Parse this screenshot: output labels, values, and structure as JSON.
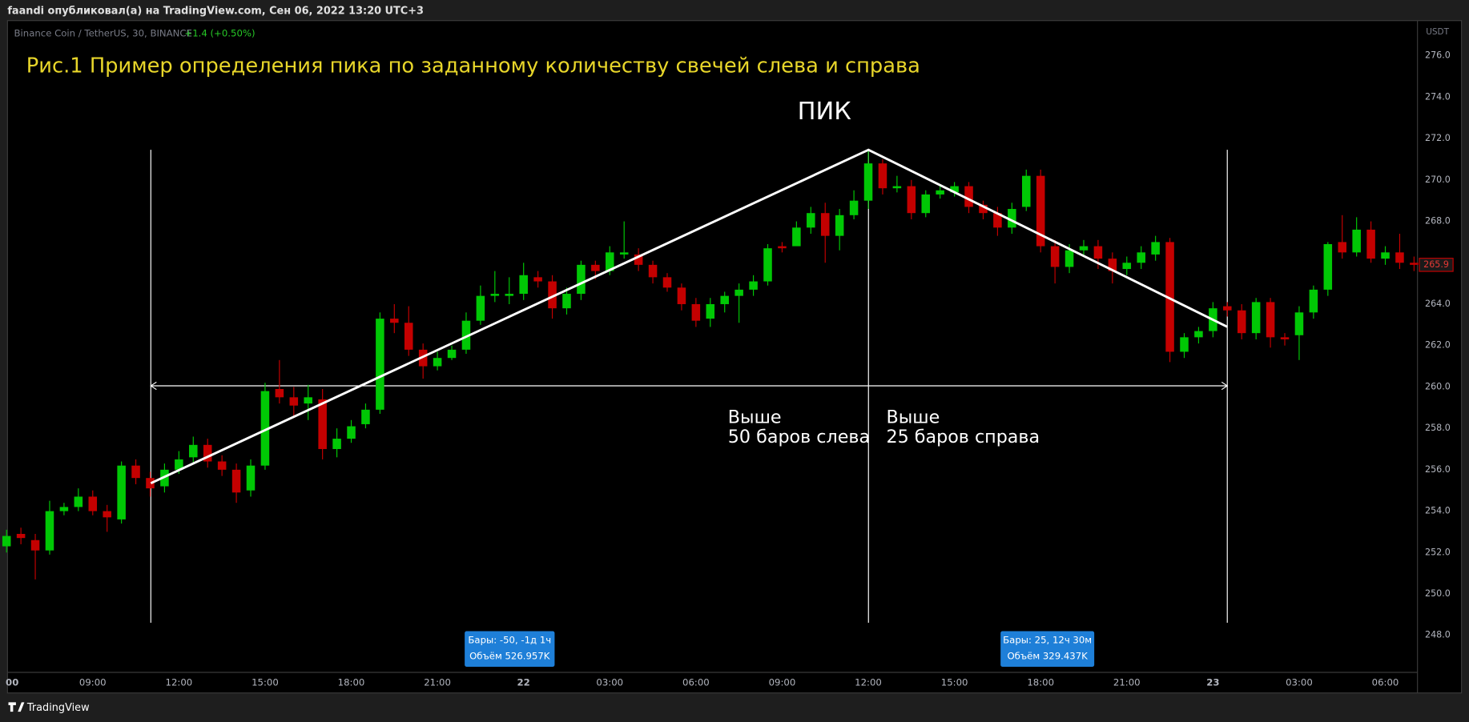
{
  "header": {
    "text": "faandi опубликовал(а) на TradingView.com, Сен 06, 2022 13:20 UTC+3"
  },
  "chart_data": {
    "type": "candlestick",
    "title": "Рис.1 Пример определения пика по заданному количеству свечей слева и справа",
    "symbol": "Binance Coin / TetherUS, 30, BINANCE",
    "change": "+1.4 (+0.50%)",
    "currency": "USDT",
    "up_color": "#00c805",
    "down_color": "#c40000",
    "categories": [
      "00",
      null,
      null,
      null,
      null,
      null,
      "09:00",
      null,
      null,
      null,
      null,
      null,
      "12:00",
      null,
      null,
      null,
      null,
      null,
      "15:00",
      null,
      null,
      null,
      null,
      null,
      "18:00",
      null,
      null,
      null,
      null,
      null,
      "21:00",
      null,
      null,
      null,
      null,
      null,
      "22",
      null,
      null,
      null,
      null,
      null,
      "03:00",
      null,
      null,
      null,
      null,
      null,
      "06:00",
      null,
      null,
      null,
      null,
      null,
      "09:00",
      null,
      null,
      null,
      null,
      null,
      "12:00",
      null,
      null,
      null,
      null,
      null,
      "15:00",
      null,
      null,
      null,
      null,
      null,
      "18:00",
      null,
      null,
      null,
      null,
      null,
      "21:00",
      null,
      null,
      null,
      null,
      null,
      "23",
      null,
      null,
      null,
      null,
      null,
      "03:00",
      null,
      null,
      null,
      null,
      null,
      "06:00",
      null,
      null
    ],
    "open": [
      252.3,
      252.9,
      252.6,
      252.1,
      254.0,
      254.2,
      254.7,
      254.0,
      253.6,
      256.2,
      255.6,
      255.2,
      256.0,
      256.6,
      257.2,
      256.4,
      256.0,
      255.0,
      256.2,
      259.9,
      259.5,
      259.2,
      259.4,
      257.0,
      257.5,
      258.2,
      258.9,
      263.3,
      263.1,
      261.8,
      261.0,
      261.4,
      261.8,
      263.2,
      264.4,
      264.4,
      264.5,
      265.3,
      265.1,
      263.8,
      264.5,
      265.9,
      265.6,
      266.4,
      266.4,
      265.9,
      265.3,
      264.8,
      264.0,
      263.3,
      264.0,
      264.4,
      264.7,
      265.1,
      266.8,
      266.8,
      267.7,
      268.4,
      267.3,
      268.3,
      269.0,
      270.8,
      269.6,
      269.7,
      268.4,
      269.3,
      269.4,
      269.7,
      268.8,
      268.4,
      267.7,
      268.7,
      270.2,
      266.8,
      265.8,
      266.6,
      266.8,
      266.2,
      265.7,
      266.0,
      266.4,
      267.0,
      261.7,
      262.4,
      262.7,
      263.9,
      263.7,
      262.6,
      264.1,
      262.4,
      262.5,
      263.6,
      264.7,
      267.0,
      266.5,
      267.6,
      266.2,
      266.5,
      266.0
    ],
    "high": [
      253.1,
      253.2,
      252.9,
      254.5,
      254.4,
      255.1,
      255.0,
      254.3,
      256.4,
      256.5,
      255.9,
      256.3,
      256.9,
      257.6,
      257.5,
      256.7,
      256.3,
      256.5,
      260.2,
      261.3,
      260.0,
      260.1,
      259.9,
      258.0,
      258.4,
      259.2,
      263.6,
      264.0,
      263.9,
      262.1,
      261.7,
      262.0,
      263.6,
      264.9,
      265.6,
      265.3,
      266.0,
      265.6,
      265.4,
      264.8,
      266.1,
      266.1,
      266.8,
      268.0,
      266.7,
      266.1,
      265.5,
      265.0,
      264.3,
      264.3,
      264.6,
      265.0,
      265.4,
      266.9,
      267.0,
      268.0,
      268.7,
      268.9,
      268.6,
      269.5,
      271.4,
      271.0,
      270.2,
      270.0,
      269.5,
      269.7,
      269.9,
      269.9,
      269.0,
      268.7,
      268.9,
      270.5,
      270.5,
      267.1,
      266.9,
      267.1,
      267.1,
      266.5,
      266.3,
      266.8,
      267.3,
      267.2,
      262.6,
      262.9,
      264.1,
      264.1,
      264.0,
      264.3,
      264.3,
      262.6,
      263.9,
      264.9,
      267.0,
      268.3,
      268.2,
      268.0,
      266.8,
      267.4,
      266.3
    ],
    "low": [
      252.0,
      252.4,
      250.7,
      251.9,
      253.8,
      254.0,
      253.8,
      253.0,
      253.4,
      255.3,
      254.7,
      254.9,
      255.8,
      256.3,
      256.1,
      255.7,
      254.4,
      254.7,
      256.0,
      259.2,
      258.5,
      258.4,
      256.5,
      256.6,
      257.3,
      258.0,
      258.7,
      262.6,
      261.5,
      260.4,
      260.8,
      261.3,
      261.6,
      263.0,
      264.1,
      264.0,
      264.2,
      264.8,
      263.3,
      263.5,
      264.2,
      265.2,
      265.4,
      266.2,
      265.6,
      265.0,
      264.6,
      263.7,
      262.9,
      262.9,
      263.6,
      263.1,
      264.4,
      264.9,
      266.5,
      267.0,
      267.4,
      266.0,
      266.6,
      268.1,
      268.6,
      269.3,
      269.4,
      268.1,
      268.2,
      269.1,
      269.2,
      268.4,
      268.1,
      267.3,
      267.4,
      268.5,
      266.5,
      265.0,
      265.5,
      266.3,
      265.7,
      265.0,
      265.4,
      265.7,
      266.1,
      261.2,
      261.4,
      262.1,
      262.4,
      263.4,
      262.3,
      262.3,
      261.9,
      262.0,
      261.3,
      263.3,
      264.4,
      266.2,
      266.3,
      266.0,
      265.9,
      265.7,
      265.6
    ],
    "close": [
      252.8,
      252.7,
      252.1,
      254.0,
      254.2,
      254.7,
      254.0,
      253.7,
      256.2,
      255.6,
      255.1,
      256.0,
      256.5,
      257.2,
      256.4,
      256.0,
      254.9,
      256.2,
      259.8,
      259.5,
      259.1,
      259.5,
      257.0,
      257.5,
      258.1,
      258.9,
      263.3,
      263.1,
      261.8,
      261.0,
      261.4,
      261.8,
      263.2,
      264.4,
      264.5,
      264.5,
      265.4,
      265.1,
      263.8,
      264.5,
      265.9,
      265.6,
      266.5,
      266.5,
      265.9,
      265.3,
      264.8,
      264.0,
      263.2,
      264.0,
      264.4,
      264.7,
      265.1,
      266.7,
      266.7,
      267.7,
      268.4,
      267.3,
      268.3,
      269.0,
      270.8,
      269.6,
      269.7,
      268.4,
      269.3,
      269.5,
      269.7,
      268.7,
      268.4,
      267.7,
      268.6,
      270.2,
      266.8,
      265.8,
      266.6,
      266.8,
      266.2,
      265.6,
      266.0,
      266.5,
      267.0,
      261.7,
      262.4,
      262.7,
      263.8,
      263.7,
      262.6,
      264.1,
      262.4,
      262.3,
      263.6,
      264.7,
      266.9,
      266.5,
      267.6,
      266.2,
      266.5,
      266.0,
      265.9
    ],
    "last_price": 265.9,
    "ylim": [
      246.3,
      277.7
    ],
    "yticks": [
      {
        "value": 248,
        "label": "248.0"
      },
      {
        "value": 250,
        "label": "250.0"
      },
      {
        "value": 252,
        "label": "252.0"
      },
      {
        "value": 254,
        "label": "254.0"
      },
      {
        "value": 256,
        "label": "256.0"
      },
      {
        "value": 258,
        "label": "258.0"
      },
      {
        "value": 260,
        "label": "260.0"
      },
      {
        "value": 262,
        "label": "262.0"
      },
      {
        "value": 264,
        "label": "264.0"
      },
      {
        "value": 266,
        "label": "266.0"
      },
      {
        "value": 268,
        "label": "268.0"
      },
      {
        "value": 270,
        "label": "270.0"
      },
      {
        "value": 272,
        "label": "272.0"
      },
      {
        "value": 274,
        "label": "274.0"
      },
      {
        "value": 276,
        "label": "276.0"
      }
    ],
    "grid": false
  },
  "annotations": {
    "peak": "ПИК",
    "left": [
      "Выше",
      "50 баров слева"
    ],
    "right": [
      "Выше",
      "25 баров справа"
    ]
  },
  "measures": [
    {
      "bars": "Бары: -50, -1д 1ч",
      "volume": "Объём 526.957K"
    },
    {
      "bars": "Бары: 25, 12ч 30м",
      "volume": "Объём 329.437K"
    }
  ],
  "footer": {
    "brand": "TradingView"
  }
}
